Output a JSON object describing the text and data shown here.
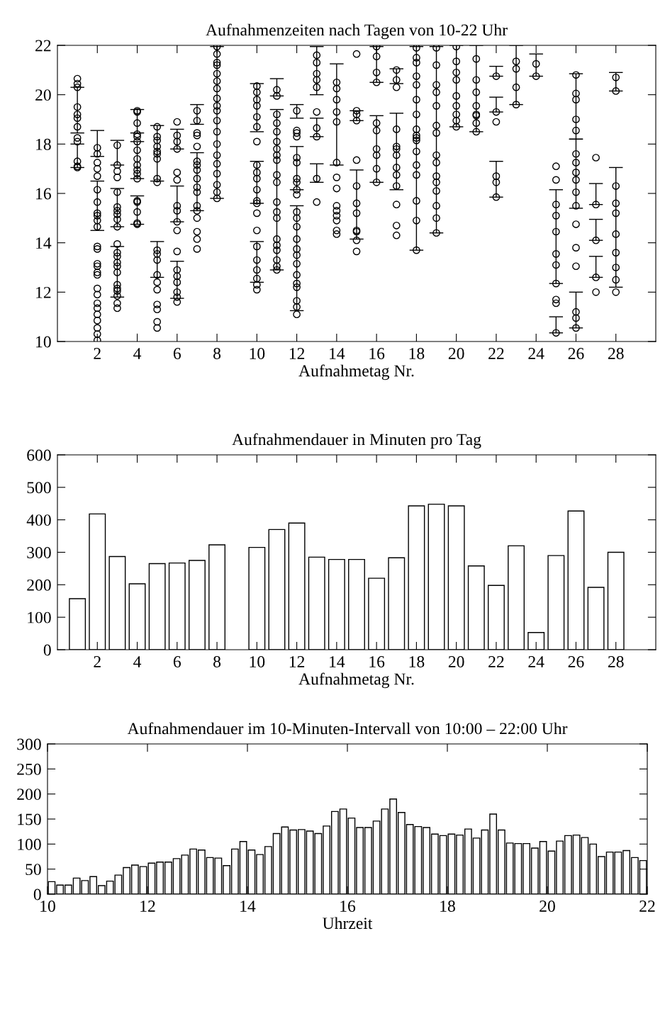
{
  "chart_data": [
    {
      "type": "scatter",
      "title": "Aufnahmenzeiten nach Tagen von 10-22 Uhr",
      "xlabel": "Aufnahmetag Nr.",
      "color": "#000000",
      "marker": "circle",
      "xlim": [
        0,
        30
      ],
      "xticks": [
        2,
        4,
        6,
        8,
        10,
        12,
        14,
        16,
        18,
        20,
        22,
        24,
        26,
        28
      ],
      "ylim": [
        10,
        22
      ],
      "yticks": [
        10,
        12,
        14,
        16,
        18,
        20,
        22
      ],
      "x": [
        1,
        1,
        1,
        1,
        1,
        1,
        1,
        1,
        1,
        1,
        1,
        1,
        2,
        2,
        2,
        2,
        2,
        2,
        2,
        2,
        2,
        2,
        2,
        2,
        2,
        2,
        2,
        2,
        2,
        2,
        2,
        2,
        2,
        2,
        2,
        2,
        2,
        2,
        3,
        3,
        3,
        3,
        3,
        3,
        3,
        3,
        3,
        3,
        3,
        3,
        3,
        3,
        3,
        3,
        3,
        3,
        3,
        3,
        3,
        3,
        4,
        4,
        4,
        4,
        4,
        4,
        4,
        4,
        4,
        4,
        4,
        4,
        4,
        4,
        4,
        4,
        4,
        5,
        5,
        5,
        5,
        5,
        5,
        5,
        5,
        5,
        5,
        5,
        5,
        5,
        5,
        5,
        5,
        5,
        5,
        5,
        6,
        6,
        6,
        6,
        6,
        6,
        6,
        6,
        6,
        6,
        6,
        6,
        6,
        6,
        6,
        6,
        6,
        7,
        7,
        7,
        7,
        7,
        7,
        7,
        7,
        7,
        7,
        7,
        7,
        7,
        7,
        7,
        7,
        7,
        8,
        8,
        8,
        8,
        8,
        8,
        8,
        8,
        8,
        8,
        8,
        8,
        8,
        8,
        8,
        8,
        8,
        8,
        8,
        10,
        10,
        10,
        10,
        10,
        10,
        10,
        10,
        10,
        10,
        10,
        10,
        10,
        10,
        10,
        10,
        10,
        10,
        10,
        10,
        10,
        11,
        11,
        11,
        11,
        11,
        11,
        11,
        11,
        11,
        11,
        11,
        11,
        11,
        11,
        11,
        11,
        11,
        11,
        11,
        11,
        12,
        12,
        12,
        12,
        12,
        12,
        12,
        12,
        12,
        12,
        12,
        12,
        12,
        12,
        12,
        12,
        12,
        12,
        12,
        12,
        12,
        12,
        12,
        13,
        13,
        13,
        13,
        13,
        13,
        13,
        13,
        13,
        13,
        14,
        14,
        14,
        14,
        14,
        14,
        14,
        14,
        14,
        14,
        14,
        14,
        14,
        14,
        15,
        15,
        15,
        15,
        15,
        15,
        15,
        15,
        15,
        15,
        15,
        15,
        16,
        16,
        16,
        16,
        16,
        16,
        16,
        16,
        16,
        16,
        17,
        17,
        17,
        17,
        17,
        17,
        17,
        17,
        17,
        17,
        17,
        17,
        17,
        18,
        18,
        18,
        18,
        18,
        18,
        18,
        18,
        18,
        18,
        18,
        18,
        18,
        18,
        18,
        18,
        18,
        19,
        19,
        19,
        19,
        19,
        19,
        19,
        19,
        19,
        19,
        19,
        19,
        19,
        19,
        19,
        20,
        20,
        20,
        20,
        20,
        20,
        20,
        20,
        20,
        21,
        21,
        21,
        21,
        21,
        21,
        21,
        21,
        22,
        22,
        22,
        22,
        22,
        22,
        23,
        23,
        23,
        23,
        24,
        24,
        25,
        25,
        25,
        25,
        25,
        25,
        25,
        25,
        25,
        25,
        25,
        26,
        26,
        26,
        26,
        26,
        26,
        26,
        26,
        26,
        26,
        26,
        26,
        26,
        26,
        26,
        26,
        26,
        27,
        27,
        27,
        27,
        27,
        28,
        28,
        28,
        28,
        28,
        28,
        28,
        28,
        28,
        28
      ],
      "values": [
        20.65,
        20.45,
        20.3,
        19.5,
        19.2,
        19.05,
        18.7,
        18.25,
        18.1,
        17.3,
        17.1,
        17.05,
        17.85,
        17.6,
        17.25,
        17.0,
        16.7,
        16.15,
        15.65,
        15.2,
        15.1,
        14.9,
        14.65,
        13.85,
        13.75,
        13.15,
        13.05,
        12.8,
        12.7,
        12.15,
        11.9,
        11.55,
        11.35,
        11.1,
        10.85,
        10.55,
        10.3,
        10.05,
        17.95,
        17.15,
        16.9,
        16.65,
        16.05,
        15.45,
        15.3,
        15.15,
        14.95,
        14.65,
        13.95,
        13.6,
        13.45,
        13.2,
        13.05,
        12.8,
        12.3,
        12.15,
        12.05,
        11.85,
        11.55,
        11.35,
        19.35,
        19.3,
        18.85,
        18.4,
        18.3,
        18.1,
        17.75,
        17.4,
        17.15,
        16.95,
        16.8,
        16.6,
        15.7,
        15.65,
        15.25,
        14.8,
        14.75,
        18.7,
        18.3,
        18.15,
        17.9,
        17.7,
        17.6,
        17.4,
        16.6,
        16.45,
        13.7,
        13.55,
        13.3,
        12.7,
        12.4,
        12.1,
        11.5,
        11.3,
        10.8,
        10.55,
        18.9,
        18.35,
        18.1,
        17.8,
        16.85,
        16.55,
        15.5,
        15.3,
        14.85,
        14.5,
        13.65,
        12.9,
        12.65,
        12.4,
        12.0,
        11.8,
        11.6,
        19.35,
        18.95,
        18.45,
        18.35,
        17.9,
        17.3,
        17.15,
        16.95,
        16.6,
        16.25,
        16.05,
        15.5,
        15.3,
        15.0,
        14.45,
        14.15,
        13.75,
        21.95,
        21.65,
        21.3,
        21.2,
        20.85,
        20.55,
        20.25,
        19.85,
        19.55,
        19.35,
        18.95,
        18.5,
        18.0,
        17.55,
        17.2,
        16.8,
        16.35,
        16.05,
        15.8,
        20.35,
        20.1,
        19.8,
        19.55,
        19.1,
        18.7,
        18.1,
        17.15,
        16.85,
        16.6,
        16.15,
        15.7,
        15.6,
        15.2,
        14.5,
        13.85,
        13.3,
        12.9,
        12.55,
        12.3,
        12.1,
        20.2,
        19.95,
        19.2,
        18.85,
        18.5,
        18.1,
        17.8,
        17.55,
        17.35,
        16.75,
        16.45,
        15.65,
        15.25,
        15.0,
        14.15,
        13.9,
        13.7,
        13.3,
        13.05,
        12.9,
        19.35,
        18.55,
        18.45,
        18.3,
        17.45,
        17.25,
        16.6,
        16.45,
        16.15,
        15.95,
        15.25,
        15.0,
        14.65,
        14.15,
        13.75,
        13.5,
        13.15,
        12.7,
        12.35,
        12.2,
        11.65,
        11.4,
        11.1,
        21.6,
        21.3,
        20.85,
        20.6,
        20.3,
        19.3,
        18.65,
        18.3,
        16.6,
        15.65,
        20.5,
        20.25,
        19.8,
        19.3,
        18.9,
        17.25,
        16.65,
        16.2,
        15.5,
        15.3,
        15.1,
        14.9,
        14.5,
        14.35,
        21.65,
        19.35,
        19.2,
        18.95,
        17.35,
        16.3,
        15.6,
        15.2,
        14.5,
        14.45,
        14.1,
        13.65,
        21.95,
        21.55,
        20.9,
        20.5,
        18.85,
        18.55,
        17.8,
        17.55,
        17.0,
        16.45,
        21.0,
        20.6,
        20.3,
        18.6,
        17.9,
        17.8,
        17.55,
        17.05,
        16.75,
        16.3,
        15.55,
        14.7,
        14.3,
        21.9,
        21.5,
        21.3,
        20.75,
        20.4,
        19.8,
        19.2,
        18.6,
        18.35,
        18.25,
        18.15,
        17.7,
        17.15,
        16.75,
        15.7,
        14.9,
        13.7,
        21.9,
        21.2,
        20.4,
        20.1,
        19.55,
        18.75,
        18.45,
        17.55,
        17.25,
        16.7,
        16.45,
        16.1,
        15.5,
        15.0,
        14.4,
        21.95,
        21.35,
        20.9,
        20.6,
        19.95,
        19.55,
        19.2,
        18.95,
        18.7,
        21.45,
        20.6,
        20.1,
        19.55,
        19.2,
        19.15,
        18.85,
        18.5,
        20.75,
        19.3,
        18.9,
        16.7,
        16.45,
        15.85,
        21.35,
        21.05,
        20.3,
        19.6,
        21.25,
        20.75,
        17.1,
        16.55,
        15.55,
        15.1,
        14.45,
        13.55,
        13.1,
        12.35,
        11.7,
        11.55,
        10.35,
        20.8,
        20.05,
        19.8,
        19.0,
        18.55,
        17.6,
        17.25,
        16.85,
        16.55,
        16.05,
        15.5,
        14.75,
        13.8,
        13.05,
        11.2,
        10.95,
        10.55,
        17.45,
        15.55,
        14.1,
        12.6,
        12.0,
        20.7,
        20.15,
        16.3,
        15.6,
        15.2,
        14.35,
        13.6,
        13.0,
        12.5,
        12.0
      ],
      "errors": [
        null,
        null,
        null,
        [
          18.45,
          20.3
        ],
        null,
        null,
        null,
        null,
        null,
        [
          17.05,
          18.0
        ],
        null,
        null,
        [
          17.5,
          18.55
        ],
        null,
        null,
        null,
        null,
        null,
        [
          14.5,
          16.5
        ],
        null,
        null,
        null,
        null,
        null,
        null,
        null,
        null,
        null,
        null,
        null,
        null,
        null,
        null,
        null,
        null,
        null,
        null,
        null,
        [
          17.15,
          18.15
        ],
        null,
        null,
        null,
        null,
        null,
        [
          14.65,
          16.2
        ],
        null,
        null,
        null,
        null,
        null,
        null,
        null,
        null,
        [
          11.8,
          13.85
        ],
        null,
        null,
        null,
        null,
        null,
        null,
        null,
        null,
        [
          18.45,
          19.4
        ],
        null,
        null,
        null,
        null,
        [
          16.6,
          18.1
        ],
        null,
        null,
        null,
        null,
        null,
        null,
        [
          14.75,
          15.9
        ],
        null,
        null,
        null,
        null,
        null,
        [
          16.5,
          18.75
        ],
        null,
        null,
        null,
        null,
        null,
        null,
        null,
        [
          12.6,
          14.05
        ],
        null,
        null,
        null,
        null,
        null,
        null,
        null,
        null,
        [
          17.8,
          18.6
        ],
        null,
        null,
        null,
        null,
        [
          14.85,
          16.3
        ],
        null,
        null,
        null,
        null,
        null,
        [
          11.75,
          13.25
        ],
        null,
        null,
        null,
        null,
        [
          18.8,
          19.6
        ],
        null,
        null,
        null,
        null,
        null,
        null,
        null,
        [
          15.3,
          17.65
        ],
        null,
        null,
        null,
        null,
        null,
        null,
        null,
        null,
        null,
        null,
        null,
        null,
        null,
        null,
        null,
        null,
        null,
        null,
        [
          15.8,
          21.95
        ],
        null,
        null,
        null,
        null,
        null,
        null,
        null,
        null,
        null,
        null,
        null,
        [
          18.5,
          20.45
        ],
        null,
        null,
        null,
        null,
        null,
        null,
        [
          15.6,
          17.3
        ],
        null,
        null,
        null,
        null,
        null,
        null,
        [
          12.4,
          14.05
        ],
        null,
        null,
        null,
        [
          19.95,
          20.65
        ],
        null,
        null,
        null,
        null,
        null,
        null,
        null,
        null,
        null,
        [
          12.9,
          19.4
        ],
        null,
        null,
        null,
        null,
        null,
        null,
        null,
        null,
        null,
        [
          19.05,
          19.6
        ],
        null,
        null,
        null,
        [
          16.15,
          17.9
        ],
        null,
        null,
        null,
        null,
        null,
        null,
        null,
        null,
        null,
        [
          11.25,
          15.5
        ],
        null,
        null,
        null,
        null,
        null,
        null,
        null,
        null,
        null,
        null,
        [
          20.0,
          21.95
        ],
        null,
        null,
        null,
        [
          18.3,
          19.05
        ],
        null,
        [
          16.45,
          17.2
        ],
        null,
        null,
        null,
        null,
        [
          17.15,
          21.25
        ],
        null,
        null,
        null,
        null,
        null,
        null,
        null,
        null,
        null,
        null,
        null,
        null,
        [
          18.95,
          19.35
        ],
        null,
        null,
        null,
        [
          14.15,
          16.95
        ],
        null,
        null,
        null,
        null,
        null,
        [
          20.5,
          21.95
        ],
        null,
        null,
        null,
        null,
        null,
        [
          16.45,
          19.15
        ],
        null,
        null,
        null,
        [
          20.45,
          21.05
        ],
        null,
        null,
        null,
        null,
        null,
        [
          16.15,
          19.25
        ],
        null,
        null,
        null,
        null,
        null,
        null,
        null,
        null,
        null,
        null,
        null,
        null,
        null,
        [
          13.7,
          21.95
        ],
        null,
        null,
        null,
        null,
        null,
        null,
        null,
        null,
        null,
        null,
        null,
        null,
        null,
        null,
        [
          14.4,
          21.95
        ],
        null,
        null,
        null,
        null,
        null,
        null,
        null,
        null,
        null,
        null,
        null,
        null,
        [
          18.7,
          22.0
        ],
        null,
        null,
        null,
        null,
        null,
        null,
        null,
        [
          18.5,
          22.0
        ],
        null,
        null,
        null,
        null,
        null,
        [
          20.75,
          21.15
        ],
        [
          19.3,
          19.9
        ],
        null,
        null,
        [
          15.85,
          17.3
        ],
        null,
        null,
        [
          19.6,
          22.0
        ],
        null,
        null,
        [
          20.75,
          21.65
        ],
        null,
        null,
        null,
        null,
        null,
        [
          12.35,
          16.15
        ],
        null,
        null,
        null,
        null,
        null,
        [
          10.35,
          11.0
        ],
        null,
        null,
        null,
        [
          18.2,
          20.85
        ],
        null,
        null,
        null,
        [
          15.4,
          18.2
        ],
        null,
        null,
        null,
        null,
        null,
        null,
        null,
        [
          10.55,
          12.0
        ],
        null,
        null,
        [
          15.55,
          16.4
        ],
        [
          14.1,
          14.95
        ],
        [
          12.6,
          13.45
        ],
        null,
        [
          20.15,
          20.9
        ],
        null,
        null,
        null,
        null,
        [
          12.2,
          17.05
        ],
        null,
        null,
        null,
        null
      ]
    },
    {
      "type": "bar",
      "title": "Aufnahmendauer in Minuten pro Tag",
      "xlabel": "Aufnahmetag Nr.",
      "color": "#ffffff",
      "xlim": [
        0,
        30
      ],
      "xticks": [
        2,
        4,
        6,
        8,
        10,
        12,
        14,
        16,
        18,
        20,
        22,
        24,
        26,
        28
      ],
      "ylim": [
        0,
        600
      ],
      "yticks": [
        0,
        100,
        200,
        300,
        400,
        500,
        600
      ],
      "x": [
        1,
        2,
        3,
        4,
        5,
        6,
        7,
        8,
        9,
        10,
        11,
        12,
        13,
        14,
        15,
        16,
        17,
        18,
        19,
        20,
        21,
        22,
        23,
        24,
        25,
        26,
        27,
        28
      ],
      "values": [
        157,
        418,
        287,
        203,
        265,
        267,
        275,
        323,
        null,
        315,
        370,
        390,
        285,
        278,
        278,
        220,
        283,
        443,
        448,
        443,
        258,
        198,
        320,
        53,
        290,
        427,
        192,
        300
      ]
    },
    {
      "type": "histogram",
      "title": "Aufnahmendauer im 10-Minuten-Intervall von 10:00 – 22:00 Uhr",
      "xlabel": "Uhrzeit",
      "color": "#ffffff",
      "xlim": [
        10,
        22
      ],
      "xticks": [
        10,
        12,
        14,
        16,
        18,
        20,
        22
      ],
      "ylim": [
        0,
        300
      ],
      "yticks": [
        0,
        50,
        100,
        150,
        200,
        250,
        300
      ],
      "bins": [
        10,
        10.1667,
        10.3333,
        10.5,
        10.6667,
        10.8333,
        11,
        11.1667,
        11.3333,
        11.5,
        11.6667,
        11.8333,
        12,
        12.1667,
        12.3333,
        12.5,
        12.6667,
        12.8333,
        13,
        13.1667,
        13.3333,
        13.5,
        13.6667,
        13.8333,
        14,
        14.1667,
        14.3333,
        14.5,
        14.6667,
        14.8333,
        15,
        15.1667,
        15.3333,
        15.5,
        15.6667,
        15.8333,
        16,
        16.1667,
        16.3333,
        16.5,
        16.6667,
        16.8333,
        17,
        17.1667,
        17.3333,
        17.5,
        17.6667,
        17.8333,
        18,
        18.1667,
        18.3333,
        18.5,
        18.6667,
        18.8333,
        19,
        19.1667,
        19.3333,
        19.5,
        19.6667,
        19.8333,
        20,
        20.1667,
        20.3333,
        20.5,
        20.6667,
        20.8333,
        21,
        21.1667,
        21.3333,
        21.5,
        21.6667,
        21.8333,
        22
      ],
      "values": [
        25,
        18,
        18,
        32,
        27,
        35,
        17,
        26,
        38,
        53,
        58,
        55,
        62,
        64,
        64,
        71,
        78,
        90,
        88,
        73,
        72,
        57,
        90,
        105,
        88,
        79,
        95,
        121,
        134,
        128,
        129,
        126,
        121,
        136,
        165,
        170,
        152,
        133,
        133,
        146,
        170,
        190,
        163,
        139,
        135,
        133,
        120,
        117,
        120,
        118,
        130,
        112,
        128,
        160,
        128,
        102,
        101,
        101,
        92,
        105,
        86,
        106,
        117,
        118,
        113,
        100,
        75,
        84,
        84,
        87,
        73,
        67
      ]
    }
  ]
}
